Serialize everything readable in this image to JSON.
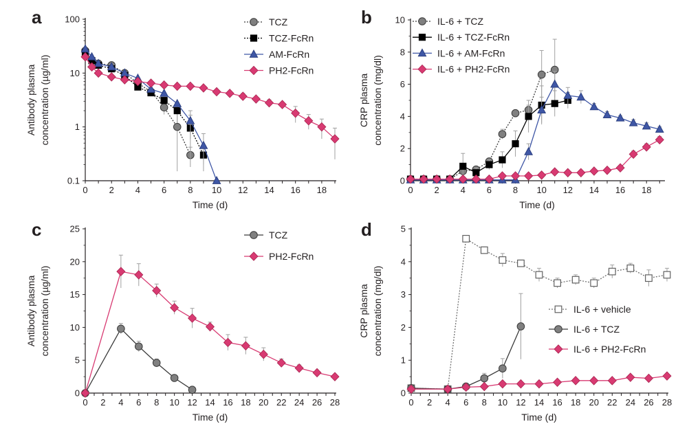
{
  "colors": {
    "axis": "#231f20",
    "TCZ": "#808080",
    "TCZ_FcRn": "#000000",
    "AM_FcRn": "#3f57a6",
    "PH2_FcRn": "#d83a72",
    "vehicle": "#ffffff",
    "error": "#a0a0a0"
  },
  "chart_data": [
    {
      "panel": "a",
      "type": "line",
      "yscale": "log",
      "ylim": [
        0.1,
        100
      ],
      "xlim": [
        0,
        19
      ],
      "xticks": [
        0,
        2,
        4,
        6,
        8,
        10,
        12,
        14,
        16,
        18
      ],
      "yticks": [
        0.1,
        1,
        10,
        100
      ],
      "ytick_labels": [
        "0.1",
        "1",
        "10",
        "100"
      ],
      "xlabel": "Time (d)",
      "ylabel": [
        "Antibody plasma",
        "concentration (µg/ml)"
      ],
      "legend_position": "top-right",
      "series": [
        {
          "name": "TCZ",
          "marker": "circle",
          "color": "#808080",
          "dashed": true,
          "x": [
            0,
            0.5,
            1,
            2,
            3,
            4,
            5,
            6,
            7,
            8
          ],
          "y": [
            26,
            17,
            15,
            14,
            10,
            6.5,
            4.5,
            2.3,
            1.0,
            0.3
          ],
          "err": [
            0,
            0,
            0,
            0,
            0,
            0,
            0,
            0.6,
            0.85,
            0.12
          ]
        },
        {
          "name": "TCZ-FcRn",
          "marker": "square",
          "color": "#000000",
          "dashed": true,
          "x": [
            0,
            0.5,
            1,
            2,
            3,
            4,
            5,
            6,
            7,
            8,
            9
          ],
          "y": [
            24,
            17,
            14,
            12,
            9,
            5.5,
            4.3,
            3.1,
            2.0,
            0.95,
            0.3
          ],
          "err": [
            0,
            0,
            0,
            0,
            0,
            0,
            0,
            0,
            0.8,
            0.7,
            0.1
          ]
        },
        {
          "name": "AM-FcRn",
          "marker": "triangle",
          "color": "#3f57a6",
          "dashed": false,
          "x": [
            0,
            0.5,
            1,
            2,
            3,
            4,
            5,
            6,
            7,
            8,
            9,
            10
          ],
          "y": [
            28,
            20,
            15,
            13,
            10,
            8,
            5,
            4.2,
            2.7,
            1.3,
            0.45,
            0.1
          ],
          "err": [
            0,
            0,
            0,
            0,
            0,
            0,
            0,
            0,
            0,
            0.7,
            0.3,
            0
          ]
        },
        {
          "name": "PH2-FcRn",
          "marker": "diamond",
          "color": "#d83a72",
          "dashed": false,
          "x": [
            0,
            0.5,
            1,
            2,
            3,
            4,
            5,
            6,
            7,
            8,
            9,
            10,
            11,
            12,
            13,
            14,
            15,
            16,
            17,
            18,
            19
          ],
          "y": [
            20,
            13,
            10,
            8.5,
            7.5,
            7,
            6.5,
            6,
            5.7,
            5.7,
            5.3,
            4.5,
            4.2,
            3.7,
            3.3,
            2.8,
            2.6,
            1.8,
            1.3,
            1.0,
            0.6
          ],
          "err": [
            0,
            0,
            0,
            0,
            0,
            0,
            0,
            0,
            0,
            0,
            0,
            0,
            0,
            0.5,
            0,
            0.4,
            0,
            0.6,
            0.4,
            0.4,
            0.35
          ]
        }
      ]
    },
    {
      "panel": "b",
      "type": "line",
      "yscale": "linear",
      "ylim": [
        0,
        10
      ],
      "xlim": [
        0,
        19.3
      ],
      "xticks": [
        0,
        2,
        4,
        6,
        8,
        10,
        12,
        14,
        16,
        18
      ],
      "yticks": [
        0,
        2,
        4,
        6,
        8,
        10
      ],
      "ytick_labels": [
        "0",
        "2",
        "4",
        "6",
        "8",
        "10"
      ],
      "xlabel": "Time (d)",
      "ylabel": [
        "CRP plasma",
        "concentration (mg/dl)"
      ],
      "legend_position": "top-left",
      "series": [
        {
          "name": "IL-6 + TCZ",
          "marker": "circle",
          "color": "#808080",
          "dashed": true,
          "x": [
            0,
            1,
            2,
            3,
            4,
            5,
            6,
            7,
            8,
            9,
            10,
            11
          ],
          "y": [
            0.1,
            0.1,
            0.1,
            0.1,
            0.6,
            0.7,
            1.2,
            2.9,
            4.2,
            4.4,
            6.6,
            6.9
          ],
          "err": [
            0,
            0,
            0,
            0,
            0.2,
            0,
            0.2,
            0.3,
            0,
            0.3,
            1.5,
            1.9
          ]
        },
        {
          "name": "IL-6 + TCZ-FcRn",
          "marker": "square",
          "color": "#000000",
          "dashed": false,
          "x": [
            0,
            1,
            2,
            3,
            4,
            5,
            6,
            7,
            8,
            9,
            10,
            11,
            12
          ],
          "y": [
            0.1,
            0.1,
            0.1,
            0.1,
            0.9,
            0.5,
            1.0,
            1.3,
            2.3,
            4.0,
            4.7,
            4.8,
            5.0
          ],
          "err": [
            0,
            0,
            0,
            0,
            0.8,
            0.3,
            0.3,
            0.5,
            0.8,
            1.0,
            1.2,
            0.8,
            0.5
          ]
        },
        {
          "name": "IL-6 + AM-FcRn",
          "marker": "triangle",
          "color": "#3f57a6",
          "dashed": false,
          "x": [
            0,
            1,
            2,
            3,
            4,
            5,
            6,
            7,
            8,
            9,
            10,
            11,
            12,
            13,
            14,
            15,
            16,
            17,
            18,
            19
          ],
          "y": [
            0.05,
            0.05,
            0.05,
            0.05,
            0.05,
            0.05,
            0.05,
            0.05,
            0.05,
            1.8,
            4.4,
            6.0,
            5.3,
            5.2,
            4.6,
            4.1,
            3.9,
            3.6,
            3.4,
            3.2
          ],
          "err": [
            0,
            0,
            0,
            0,
            0,
            0,
            0,
            0,
            0,
            0.5,
            0.8,
            0.8,
            0.5,
            0.4,
            0.2,
            0.2,
            0.15,
            0.2,
            0.2,
            0.15
          ]
        },
        {
          "name": "IL-6 + PH2-FcRn",
          "marker": "diamond",
          "color": "#d83a72",
          "dashed": false,
          "x": [
            0,
            1,
            2,
            3,
            4,
            5,
            6,
            7,
            8,
            9,
            10,
            11,
            12,
            13,
            14,
            15,
            16,
            17,
            18,
            19
          ],
          "y": [
            0.1,
            0.1,
            0.1,
            0.1,
            0.1,
            0.1,
            0.1,
            0.3,
            0.3,
            0.3,
            0.35,
            0.55,
            0.5,
            0.5,
            0.6,
            0.65,
            0.8,
            1.65,
            2.1,
            2.55
          ],
          "err": [
            0,
            0,
            0,
            0,
            0,
            0,
            0,
            0,
            0,
            0,
            0,
            0,
            0,
            0,
            0,
            0,
            0,
            0.2,
            0.2,
            0.2
          ]
        }
      ]
    },
    {
      "panel": "c",
      "type": "line",
      "yscale": "linear",
      "ylim": [
        0,
        25
      ],
      "xlim": [
        0,
        28
      ],
      "xticks": [
        0,
        2,
        4,
        6,
        8,
        10,
        12,
        14,
        16,
        18,
        20,
        22,
        24,
        26,
        28
      ],
      "yticks": [
        0,
        5,
        10,
        15,
        20,
        25
      ],
      "ytick_labels": [
        "0",
        "5",
        "10",
        "15",
        "20",
        "25"
      ],
      "xlabel": "Time (d)",
      "ylabel": [
        "Antibody plasma",
        "concentration (µg/ml)"
      ],
      "legend_position": "top-right",
      "series": [
        {
          "name": "TCZ",
          "marker": "circle",
          "color": "#808080",
          "dashed": false,
          "x": [
            0,
            4,
            6,
            8,
            10,
            12
          ],
          "y": [
            0,
            9.8,
            7.1,
            4.6,
            2.3,
            0.5
          ],
          "err": [
            0,
            0.8,
            0.8,
            0.6,
            0.5,
            0
          ]
        },
        {
          "name": "PH2-FcRn",
          "marker": "diamond",
          "color": "#d83a72",
          "dashed": false,
          "x": [
            0,
            4,
            6,
            8,
            10,
            12,
            14,
            16,
            18,
            20,
            22,
            24,
            26,
            28
          ],
          "y": [
            0,
            18.5,
            18,
            15.6,
            13,
            11.4,
            10.1,
            7.7,
            7.2,
            5.9,
            4.6,
            3.8,
            3.1,
            2.5
          ],
          "err": [
            0,
            2.5,
            1.7,
            1.0,
            1.0,
            1.5,
            0.7,
            1.2,
            1.3,
            1.0,
            0.6,
            0.5,
            0.3,
            0.2
          ]
        }
      ]
    },
    {
      "panel": "d",
      "type": "line",
      "yscale": "linear",
      "ylim": [
        0,
        5
      ],
      "xlim": [
        0,
        28
      ],
      "xticks": [
        0,
        2,
        4,
        6,
        8,
        10,
        12,
        14,
        16,
        18,
        20,
        22,
        24,
        26,
        28
      ],
      "yticks": [
        0,
        1,
        2,
        3,
        4,
        5
      ],
      "ytick_labels": [
        "0",
        "1",
        "2",
        "3",
        "4",
        "5"
      ],
      "xlabel": "Time (d)",
      "ylabel": [
        "CRP plasma",
        "concentration (mg/dl)"
      ],
      "legend_position": "center-right",
      "series": [
        {
          "name": "IL-6 + vehicle",
          "marker": "opensquare",
          "color": "#808080",
          "dashed": true,
          "x": [
            0,
            4,
            6,
            8,
            10,
            12,
            14,
            16,
            18,
            20,
            22,
            24,
            26,
            28
          ],
          "y": [
            0.15,
            0.12,
            4.7,
            4.35,
            4.05,
            3.95,
            3.6,
            3.35,
            3.45,
            3.35,
            3.7,
            3.8,
            3.5,
            3.6
          ],
          "err": [
            0,
            0,
            0,
            0.1,
            0.2,
            0.1,
            0.2,
            0.15,
            0.15,
            0.15,
            0.2,
            0.15,
            0.25,
            0.2
          ]
        },
        {
          "name": "IL-6 + TCZ",
          "marker": "circle",
          "color": "#808080",
          "dashed": false,
          "x": [
            0,
            4,
            6,
            8,
            10,
            12
          ],
          "y": [
            0.15,
            0.12,
            0.2,
            0.45,
            0.75,
            2.03
          ],
          "err": [
            0,
            0,
            0,
            0.15,
            0.3,
            1.0
          ]
        },
        {
          "name": "IL-6 + PH2-FcRn",
          "marker": "diamond",
          "color": "#d83a72",
          "dashed": false,
          "x": [
            0,
            4,
            6,
            8,
            10,
            12,
            14,
            16,
            18,
            20,
            22,
            24,
            26,
            28
          ],
          "y": [
            0.12,
            0.12,
            0.18,
            0.2,
            0.28,
            0.28,
            0.28,
            0.33,
            0.38,
            0.38,
            0.38,
            0.48,
            0.45,
            0.52
          ],
          "err": [
            0,
            0,
            0,
            0,
            0,
            0,
            0,
            0,
            0,
            0,
            0,
            0,
            0,
            0
          ]
        }
      ]
    }
  ]
}
